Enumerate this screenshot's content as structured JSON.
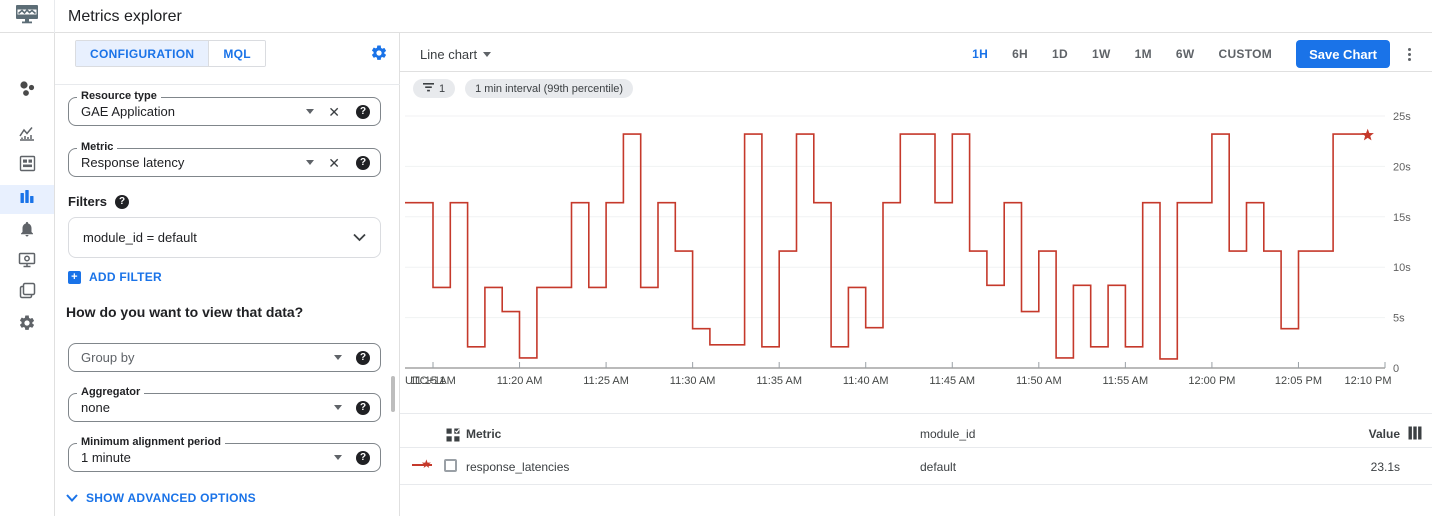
{
  "colors": {
    "accent": "#1a73e8",
    "accent_bg": "#e8f0fe",
    "series_red": "#c5392b",
    "grid": "#eceff1",
    "axis": "#757575"
  },
  "topbar": {
    "title": "Metrics explorer"
  },
  "rail": {
    "items": [
      "monitoring-overview",
      "charts",
      "dashboards",
      "services",
      "metrics-explorer",
      "alerting",
      "uptime-checks",
      "groups",
      "settings"
    ],
    "active": "metrics-explorer"
  },
  "config": {
    "tabs": [
      {
        "label": "CONFIGURATION",
        "active": true
      },
      {
        "label": "MQL",
        "active": false
      }
    ],
    "fields": {
      "resource_type": {
        "label": "Resource type",
        "value": "GAE Application"
      },
      "metric": {
        "label": "Metric",
        "value": "Response latency"
      }
    },
    "filters": {
      "label": "Filters",
      "value": "module_id = default",
      "add_label": "ADD FILTER"
    },
    "view_question": "How do you want to view that data?",
    "group_by": {
      "placeholder": "Group by"
    },
    "aggregator": {
      "label": "Aggregator",
      "value": "none"
    },
    "alignment": {
      "label": "Minimum alignment period",
      "value": "1 minute"
    },
    "advanced": "SHOW ADVANCED OPTIONS"
  },
  "toolbar": {
    "chart_type": "Line chart",
    "ranges": [
      "1H",
      "6H",
      "1D",
      "1W",
      "1M",
      "6W",
      "CUSTOM"
    ],
    "active_range": "1H",
    "save": "Save Chart"
  },
  "chips": {
    "filter_count": "1",
    "interval": "1 min interval (99th percentile)"
  },
  "chart_data": {
    "type": "line",
    "style": "step-after",
    "series_name": "response_latencies",
    "unit": "seconds",
    "ylim": [
      0,
      25
    ],
    "utc_label": "UTC+11",
    "x_ticks": [
      "11:15 AM",
      "11:20 AM",
      "11:25 AM",
      "11:30 AM",
      "11:35 AM",
      "11:40 AM",
      "11:45 AM",
      "11:50 AM",
      "11:55 AM",
      "12:00 PM",
      "12:05 PM",
      "12:10 PM"
    ],
    "y_ticks": [
      {
        "v": 0,
        "label": "0"
      },
      {
        "v": 5,
        "label": "5s"
      },
      {
        "v": 10,
        "label": "10s"
      },
      {
        "v": 15,
        "label": "15s"
      },
      {
        "v": 20,
        "label": "20s"
      },
      {
        "v": 25,
        "label": "25s"
      }
    ],
    "end_marker": "star",
    "points": [
      {
        "t": "11:13 AM",
        "v": 16.4
      },
      {
        "t": "11:14 AM",
        "v": 16.4
      },
      {
        "t": "11:15 AM",
        "v": 8.0
      },
      {
        "t": "11:16 AM",
        "v": 16.4
      },
      {
        "t": "11:17 AM",
        "v": 2.1
      },
      {
        "t": "11:18 AM",
        "v": 8.0
      },
      {
        "t": "11:19 AM",
        "v": 5.6
      },
      {
        "t": "11:20 AM",
        "v": 1.0
      },
      {
        "t": "11:21 AM",
        "v": 8.0
      },
      {
        "t": "11:22 AM",
        "v": 8.0
      },
      {
        "t": "11:23 AM",
        "v": 16.4
      },
      {
        "t": "11:24 AM",
        "v": 8.0
      },
      {
        "t": "11:25 AM",
        "v": 16.4
      },
      {
        "t": "11:26 AM",
        "v": 23.2
      },
      {
        "t": "11:27 AM",
        "v": 8.0
      },
      {
        "t": "11:28 AM",
        "v": 16.4
      },
      {
        "t": "11:29 AM",
        "v": 11.6
      },
      {
        "t": "11:30 AM",
        "v": 3.9
      },
      {
        "t": "11:31 AM",
        "v": 2.3
      },
      {
        "t": "11:32 AM",
        "v": 2.3
      },
      {
        "t": "11:33 AM",
        "v": 23.2
      },
      {
        "t": "11:34 AM",
        "v": 2.1
      },
      {
        "t": "11:35 AM",
        "v": 11.6
      },
      {
        "t": "11:36 AM",
        "v": 23.2
      },
      {
        "t": "11:37 AM",
        "v": 16.4
      },
      {
        "t": "11:38 AM",
        "v": 2.1
      },
      {
        "t": "11:39 AM",
        "v": 8.0
      },
      {
        "t": "11:40 AM",
        "v": 4.0
      },
      {
        "t": "11:41 AM",
        "v": 16.4
      },
      {
        "t": "11:42 AM",
        "v": 23.2
      },
      {
        "t": "11:43 AM",
        "v": 23.2
      },
      {
        "t": "11:44 AM",
        "v": 16.4
      },
      {
        "t": "11:45 AM",
        "v": 23.2
      },
      {
        "t": "11:46 AM",
        "v": 11.6
      },
      {
        "t": "11:47 AM",
        "v": 8.2
      },
      {
        "t": "11:48 AM",
        "v": 16.4
      },
      {
        "t": "11:49 AM",
        "v": 5.6
      },
      {
        "t": "11:50 AM",
        "v": 11.6
      },
      {
        "t": "11:51 AM",
        "v": 1.0
      },
      {
        "t": "11:52 AM",
        "v": 8.2
      },
      {
        "t": "11:53 AM",
        "v": 2.1
      },
      {
        "t": "11:54 AM",
        "v": 8.2
      },
      {
        "t": "11:55 AM",
        "v": 2.1
      },
      {
        "t": "11:56 AM",
        "v": 16.4
      },
      {
        "t": "11:57 AM",
        "v": 0.9
      },
      {
        "t": "11:58 AM",
        "v": 16.4
      },
      {
        "t": "11:59 AM",
        "v": 16.4
      },
      {
        "t": "12:00 PM",
        "v": 23.2
      },
      {
        "t": "12:01 PM",
        "v": 11.6
      },
      {
        "t": "12:02 PM",
        "v": 16.4
      },
      {
        "t": "12:03 PM",
        "v": 11.6
      },
      {
        "t": "12:04 PM",
        "v": 3.9
      },
      {
        "t": "12:05 PM",
        "v": 11.6
      },
      {
        "t": "12:06 PM",
        "v": 11.6
      },
      {
        "t": "12:07 PM",
        "v": 23.2
      },
      {
        "t": "12:08 PM",
        "v": 23.2
      },
      {
        "t": "12:09 PM",
        "v": 23.1
      }
    ]
  },
  "table": {
    "headers": {
      "metric": "Metric",
      "module_id": "module_id",
      "value": "Value"
    },
    "rows": [
      {
        "metric": "response_latencies",
        "module_id": "default",
        "value": "23.1s"
      }
    ]
  }
}
